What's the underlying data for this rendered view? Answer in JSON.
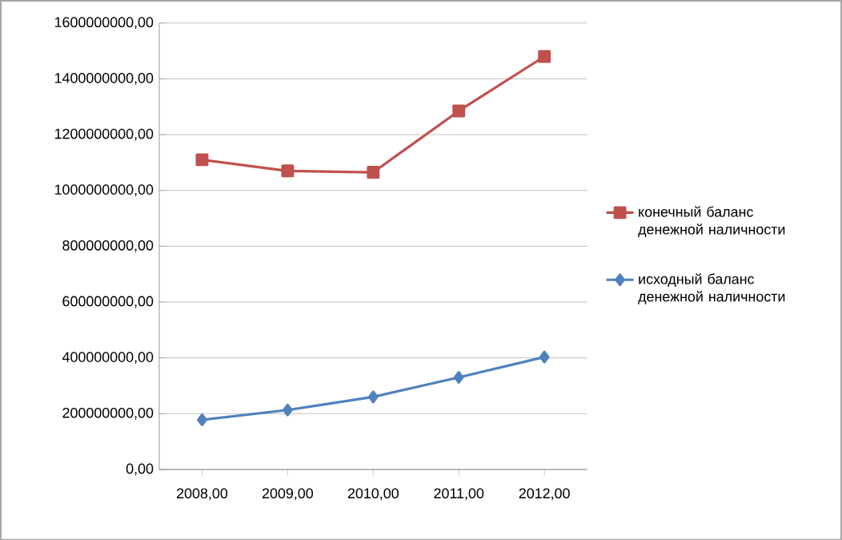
{
  "chart_data": {
    "type": "line",
    "categories": [
      "2008,00",
      "2009,00",
      "2010,00",
      "2011,00",
      "2012,00"
    ],
    "series": [
      {
        "name": "конечный баланс денежной наличности",
        "color": "#c0504d",
        "marker": "square",
        "values": [
          1110000000,
          1070000000,
          1065000000,
          1285000000,
          1480000000
        ]
      },
      {
        "name": "исходный баланс денежной наличности",
        "color": "#4f81bd",
        "marker": "diamond",
        "values": [
          178000000,
          213000000,
          260000000,
          330000000,
          403000000
        ]
      }
    ],
    "ylim": [
      0,
      1600000000
    ],
    "yticks": [
      {
        "value": 0,
        "label": "0,00"
      },
      {
        "value": 200000000,
        "label": "200000000,00"
      },
      {
        "value": 400000000,
        "label": "400000000,00"
      },
      {
        "value": 600000000,
        "label": "600000000,00"
      },
      {
        "value": 800000000,
        "label": "800000000,00"
      },
      {
        "value": 1000000000,
        "label": "1000000000,00"
      },
      {
        "value": 1200000000,
        "label": "1200000000,00"
      },
      {
        "value": 1400000000,
        "label": "1400000000,00"
      },
      {
        "value": 1600000000,
        "label": "1600000000,00"
      }
    ],
    "grid": "y",
    "legend": "right",
    "line_style": "solid"
  }
}
